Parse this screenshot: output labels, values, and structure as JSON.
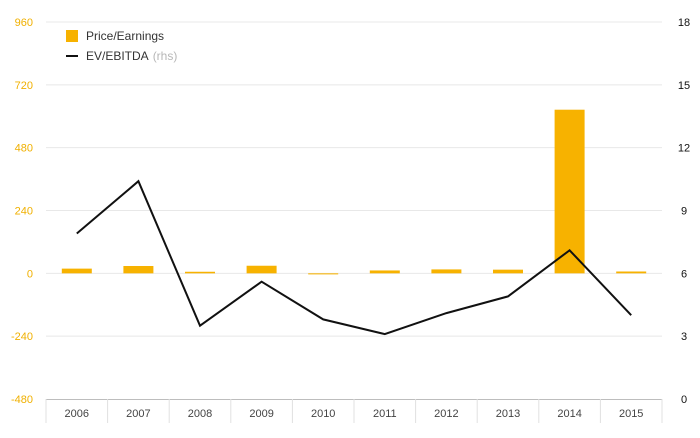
{
  "chart_data": {
    "type": "bar",
    "categories": [
      "2006",
      "2007",
      "2008",
      "2009",
      "2010",
      "2011",
      "2012",
      "2013",
      "2014",
      "2015"
    ],
    "series": [
      {
        "name": "Price/Earnings",
        "type": "bar",
        "axis": "left",
        "color": "#f7b200",
        "values": [
          18,
          28,
          6,
          29,
          -4,
          11,
          15,
          14,
          625,
          7
        ]
      },
      {
        "name": "EV/EBITDA",
        "type": "line",
        "axis": "right",
        "color": "#111111",
        "values": [
          7.9,
          10.4,
          3.5,
          5.6,
          3.8,
          3.1,
          4.1,
          4.9,
          7.1,
          4.0
        ]
      }
    ],
    "left_axis": {
      "ylim": [
        -480,
        960
      ],
      "ticks": [
        "960",
        "720",
        "480",
        "240",
        "0",
        "-240",
        "-480"
      ],
      "color": "#f0b000"
    },
    "right_axis": {
      "ylim": [
        0,
        18
      ],
      "ticks": [
        "18",
        "15",
        "12",
        "9",
        "6",
        "3",
        "0"
      ],
      "color": "#111111"
    },
    "legend": {
      "items": [
        {
          "label": "Price/Earnings",
          "suffix": "",
          "kind": "bar",
          "color": "#f7b200"
        },
        {
          "label": "EV/EBITDA",
          "suffix": "(rhs)",
          "kind": "line",
          "color": "#111111"
        }
      ],
      "placement": "top-left"
    },
    "grid": true
  }
}
